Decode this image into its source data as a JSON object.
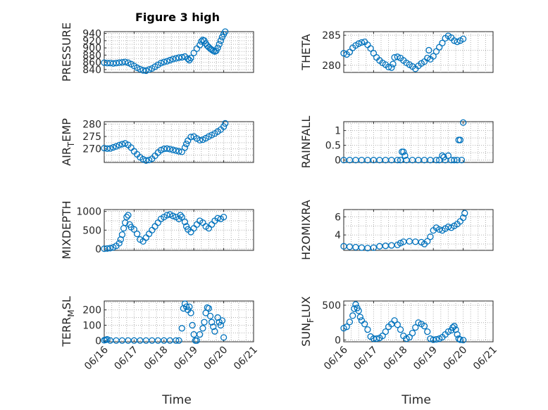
{
  "title": "Figure 3 high",
  "marker_color": "#0072bd",
  "x_axis": {
    "label": "Time",
    "ticks": [
      "06/16",
      "06/17",
      "06/18",
      "06/19",
      "06/20",
      "06/21"
    ]
  },
  "chart_data": [
    {
      "type": "scatter",
      "id": "pressure",
      "ylabel": "PRESSURE",
      "ylim": [
        832,
        945
      ],
      "yticks": [
        840,
        860,
        880,
        900,
        920,
        940
      ],
      "grid": true,
      "points": [
        [
          0,
          859
        ],
        [
          0.1,
          858
        ],
        [
          0.2,
          858
        ],
        [
          0.3,
          857
        ],
        [
          0.4,
          858
        ],
        [
          0.5,
          859
        ],
        [
          0.6,
          860
        ],
        [
          0.7,
          861
        ],
        [
          0.8,
          859
        ],
        [
          0.9,
          855
        ],
        [
          1.0,
          850
        ],
        [
          1.1,
          845
        ],
        [
          1.2,
          841
        ],
        [
          1.3,
          838
        ],
        [
          1.4,
          837
        ],
        [
          1.5,
          840
        ],
        [
          1.6,
          843
        ],
        [
          1.7,
          848
        ],
        [
          1.8,
          853
        ],
        [
          1.9,
          858
        ],
        [
          2.0,
          861
        ],
        [
          2.1,
          863
        ],
        [
          2.2,
          866
        ],
        [
          2.3,
          869
        ],
        [
          2.4,
          871
        ],
        [
          2.5,
          873
        ],
        [
          2.6,
          874
        ],
        [
          2.7,
          876
        ],
        [
          2.8,
          870
        ],
        [
          2.85,
          866
        ],
        [
          2.9,
          872
        ],
        [
          3.0,
          886
        ],
        [
          3.1,
          898
        ],
        [
          3.2,
          908
        ],
        [
          3.25,
          918
        ],
        [
          3.3,
          922
        ],
        [
          3.35,
          920
        ],
        [
          3.4,
          912
        ],
        [
          3.45,
          906
        ],
        [
          3.5,
          902
        ],
        [
          3.55,
          898
        ],
        [
          3.6,
          895
        ],
        [
          3.65,
          892
        ],
        [
          3.7,
          890
        ],
        [
          3.75,
          892
        ],
        [
          3.8,
          900
        ],
        [
          3.85,
          910
        ],
        [
          3.9,
          920
        ],
        [
          3.95,
          930
        ],
        [
          4.0,
          938
        ],
        [
          4.05,
          945
        ]
      ]
    },
    {
      "type": "scatter",
      "id": "theta",
      "ylabel": "THETA",
      "ylim": [
        278.8,
        285.6
      ],
      "yticks": [
        280,
        285
      ],
      "grid": true,
      "points": [
        [
          0,
          282.0
        ],
        [
          0.1,
          281.8
        ],
        [
          0.2,
          282.2
        ],
        [
          0.3,
          282.9
        ],
        [
          0.4,
          283.3
        ],
        [
          0.5,
          283.6
        ],
        [
          0.6,
          283.8
        ],
        [
          0.7,
          283.9
        ],
        [
          0.8,
          283.4
        ],
        [
          0.9,
          282.8
        ],
        [
          1.0,
          282.0
        ],
        [
          1.1,
          281.3
        ],
        [
          1.2,
          280.8
        ],
        [
          1.3,
          280.4
        ],
        [
          1.4,
          280.1
        ],
        [
          1.5,
          279.7
        ],
        [
          1.6,
          279.6
        ],
        [
          1.65,
          280.2
        ],
        [
          1.7,
          281.3
        ],
        [
          1.8,
          281.4
        ],
        [
          1.9,
          281.2
        ],
        [
          2.0,
          280.8
        ],
        [
          2.1,
          280.4
        ],
        [
          2.2,
          280.1
        ],
        [
          2.3,
          279.8
        ],
        [
          2.4,
          279.4
        ],
        [
          2.5,
          279.9
        ],
        [
          2.6,
          280.3
        ],
        [
          2.7,
          280.6
        ],
        [
          2.8,
          281.2
        ],
        [
          2.85,
          282.5
        ],
        [
          2.9,
          281.0
        ],
        [
          3.0,
          281.5
        ],
        [
          3.1,
          282.3
        ],
        [
          3.2,
          283.0
        ],
        [
          3.3,
          283.7
        ],
        [
          3.4,
          284.5
        ],
        [
          3.5,
          284.9
        ],
        [
          3.6,
          284.6
        ],
        [
          3.7,
          284.1
        ],
        [
          3.8,
          283.9
        ],
        [
          3.9,
          284.1
        ],
        [
          4.0,
          284.4
        ]
      ]
    },
    {
      "type": "scatter",
      "id": "air_temp",
      "ylabel": "AIR",
      "ylabel_sub": "T",
      "ylabel_rest": "EMP",
      "ylim": [
        264.5,
        281
      ],
      "yticks": [
        270,
        275,
        280
      ],
      "grid": true,
      "points": [
        [
          0,
          270.3
        ],
        [
          0.1,
          270.1
        ],
        [
          0.2,
          270.2
        ],
        [
          0.3,
          270.6
        ],
        [
          0.4,
          271.0
        ],
        [
          0.5,
          271.5
        ],
        [
          0.6,
          271.9
        ],
        [
          0.7,
          272.2
        ],
        [
          0.8,
          271.6
        ],
        [
          0.9,
          270.5
        ],
        [
          1.0,
          269.0
        ],
        [
          1.1,
          267.8
        ],
        [
          1.2,
          266.6
        ],
        [
          1.3,
          265.8
        ],
        [
          1.4,
          265.3
        ],
        [
          1.5,
          265.5
        ],
        [
          1.6,
          266.0
        ],
        [
          1.7,
          267.2
        ],
        [
          1.8,
          268.5
        ],
        [
          1.9,
          269.5
        ],
        [
          2.0,
          270.0
        ],
        [
          2.1,
          270.1
        ],
        [
          2.2,
          269.9
        ],
        [
          2.3,
          269.6
        ],
        [
          2.4,
          269.3
        ],
        [
          2.5,
          269.0
        ],
        [
          2.6,
          268.8
        ],
        [
          2.7,
          270.5
        ],
        [
          2.75,
          272.0
        ],
        [
          2.8,
          273.3
        ],
        [
          2.9,
          274.8
        ],
        [
          3.0,
          275.0
        ],
        [
          3.1,
          274.2
        ],
        [
          3.2,
          273.5
        ],
        [
          3.3,
          273.7
        ],
        [
          3.4,
          274.3
        ],
        [
          3.5,
          275.0
        ],
        [
          3.6,
          275.6
        ],
        [
          3.7,
          276.2
        ],
        [
          3.8,
          277.0
        ],
        [
          3.9,
          277.8
        ],
        [
          4.0,
          279.0
        ],
        [
          4.05,
          280.3
        ]
      ]
    },
    {
      "type": "scatter",
      "id": "rainfall",
      "ylabel": "RAINFALL",
      "ylim": [
        -0.08,
        1.3
      ],
      "yticks": [
        0,
        0.5,
        1
      ],
      "grid": true,
      "points": [
        [
          0,
          0
        ],
        [
          0.2,
          0
        ],
        [
          0.4,
          0
        ],
        [
          0.6,
          0
        ],
        [
          0.8,
          0
        ],
        [
          1.0,
          0
        ],
        [
          1.2,
          0
        ],
        [
          1.4,
          0
        ],
        [
          1.6,
          0
        ],
        [
          1.8,
          0
        ],
        [
          1.9,
          0
        ],
        [
          1.95,
          0.28
        ],
        [
          2.0,
          0.28
        ],
        [
          2.05,
          0.15
        ],
        [
          2.1,
          0
        ],
        [
          2.3,
          0
        ],
        [
          2.5,
          0
        ],
        [
          2.7,
          0
        ],
        [
          2.9,
          0
        ],
        [
          3.1,
          0
        ],
        [
          3.2,
          0
        ],
        [
          3.3,
          0.15
        ],
        [
          3.35,
          0.1
        ],
        [
          3.4,
          0
        ],
        [
          3.5,
          0.15
        ],
        [
          3.6,
          0
        ],
        [
          3.7,
          0
        ],
        [
          3.8,
          0
        ],
        [
          3.85,
          0.68
        ],
        [
          3.9,
          0.68
        ],
        [
          3.95,
          0
        ],
        [
          4.0,
          1.27
        ]
      ]
    },
    {
      "type": "scatter",
      "id": "mixdepth",
      "ylabel": "MIXDEPTH",
      "ylim": [
        -40,
        1050
      ],
      "yticks": [
        0,
        500,
        1000
      ],
      "grid": true,
      "points": [
        [
          0,
          5
        ],
        [
          0.1,
          10
        ],
        [
          0.2,
          20
        ],
        [
          0.3,
          40
        ],
        [
          0.4,
          80
        ],
        [
          0.5,
          150
        ],
        [
          0.55,
          250
        ],
        [
          0.6,
          380
        ],
        [
          0.65,
          550
        ],
        [
          0.7,
          700
        ],
        [
          0.75,
          850
        ],
        [
          0.8,
          900
        ],
        [
          0.85,
          650
        ],
        [
          0.9,
          580
        ],
        [
          1.0,
          520
        ],
        [
          1.1,
          400
        ],
        [
          1.2,
          250
        ],
        [
          1.3,
          200
        ],
        [
          1.4,
          300
        ],
        [
          1.5,
          400
        ],
        [
          1.6,
          500
        ],
        [
          1.7,
          600
        ],
        [
          1.8,
          700
        ],
        [
          1.9,
          800
        ],
        [
          2.0,
          850
        ],
        [
          2.1,
          900
        ],
        [
          2.2,
          920
        ],
        [
          2.3,
          880
        ],
        [
          2.4,
          850
        ],
        [
          2.5,
          800
        ],
        [
          2.55,
          900
        ],
        [
          2.6,
          850
        ],
        [
          2.7,
          720
        ],
        [
          2.75,
          600
        ],
        [
          2.8,
          520
        ],
        [
          2.9,
          450
        ],
        [
          3.0,
          550
        ],
        [
          3.1,
          650
        ],
        [
          3.2,
          750
        ],
        [
          3.3,
          700
        ],
        [
          3.4,
          600
        ],
        [
          3.5,
          550
        ],
        [
          3.6,
          650
        ],
        [
          3.7,
          750
        ],
        [
          3.8,
          820
        ],
        [
          3.9,
          800
        ],
        [
          4.0,
          850
        ]
      ]
    },
    {
      "type": "scatter",
      "id": "h2omixra",
      "ylabel": "H2OMIXRA",
      "ylim": [
        2.3,
        6.8
      ],
      "yticks": [
        4,
        6
      ],
      "grid": true,
      "points": [
        [
          0,
          2.75
        ],
        [
          0.2,
          2.7
        ],
        [
          0.4,
          2.65
        ],
        [
          0.6,
          2.6
        ],
        [
          0.8,
          2.55
        ],
        [
          1.0,
          2.6
        ],
        [
          1.2,
          2.75
        ],
        [
          1.4,
          2.8
        ],
        [
          1.6,
          2.85
        ],
        [
          1.8,
          2.9
        ],
        [
          1.9,
          3.1
        ],
        [
          2.0,
          3.25
        ],
        [
          2.2,
          3.3
        ],
        [
          2.4,
          3.25
        ],
        [
          2.6,
          3.2
        ],
        [
          2.7,
          3.0
        ],
        [
          2.8,
          3.3
        ],
        [
          2.9,
          3.8
        ],
        [
          3.0,
          4.5
        ],
        [
          3.1,
          4.8
        ],
        [
          3.2,
          4.6
        ],
        [
          3.3,
          4.5
        ],
        [
          3.4,
          4.7
        ],
        [
          3.5,
          4.9
        ],
        [
          3.6,
          4.8
        ],
        [
          3.7,
          5.0
        ],
        [
          3.8,
          5.2
        ],
        [
          3.9,
          5.5
        ],
        [
          4.0,
          5.9
        ],
        [
          4.05,
          6.4
        ]
      ]
    },
    {
      "type": "scatter",
      "id": "terr_msl",
      "ylabel": "TERR",
      "ylabel_sub": "M",
      "ylabel_rest": "SL",
      "ylim": [
        -8,
        258
      ],
      "yticks": [
        0,
        100,
        200
      ],
      "grid": true,
      "points": [
        [
          0,
          2
        ],
        [
          0.05,
          5
        ],
        [
          0.1,
          8
        ],
        [
          0.2,
          0
        ],
        [
          0.4,
          0
        ],
        [
          0.6,
          0
        ],
        [
          0.8,
          0
        ],
        [
          1.0,
          0
        ],
        [
          1.2,
          0
        ],
        [
          1.4,
          0
        ],
        [
          1.6,
          0
        ],
        [
          1.8,
          0
        ],
        [
          2.0,
          0
        ],
        [
          2.2,
          0
        ],
        [
          2.4,
          0
        ],
        [
          2.5,
          0
        ],
        [
          2.6,
          80
        ],
        [
          2.65,
          210
        ],
        [
          2.7,
          240
        ],
        [
          2.75,
          220
        ],
        [
          2.8,
          200
        ],
        [
          2.85,
          220
        ],
        [
          2.9,
          180
        ],
        [
          2.95,
          100
        ],
        [
          3.0,
          40
        ],
        [
          3.05,
          0
        ],
        [
          3.1,
          0
        ],
        [
          3.2,
          40
        ],
        [
          3.3,
          80
        ],
        [
          3.35,
          120
        ],
        [
          3.4,
          180
        ],
        [
          3.45,
          215
        ],
        [
          3.5,
          210
        ],
        [
          3.55,
          160
        ],
        [
          3.6,
          120
        ],
        [
          3.65,
          90
        ],
        [
          3.7,
          60
        ],
        [
          3.8,
          150
        ],
        [
          3.85,
          120
        ],
        [
          3.9,
          100
        ],
        [
          3.95,
          130
        ],
        [
          4.0,
          20
        ]
      ]
    },
    {
      "type": "scatter",
      "id": "sun_flux",
      "ylabel": "SUN",
      "ylabel_sub": "F",
      "ylabel_rest": "LUX",
      "ylim": [
        -25,
        560
      ],
      "yticks": [
        0,
        500
      ],
      "grid": true,
      "points": [
        [
          0,
          170
        ],
        [
          0.1,
          190
        ],
        [
          0.2,
          260
        ],
        [
          0.3,
          350
        ],
        [
          0.35,
          450
        ],
        [
          0.4,
          510
        ],
        [
          0.45,
          460
        ],
        [
          0.5,
          420
        ],
        [
          0.55,
          330
        ],
        [
          0.6,
          280
        ],
        [
          0.7,
          230
        ],
        [
          0.8,
          150
        ],
        [
          0.9,
          50
        ],
        [
          1.0,
          20
        ],
        [
          1.1,
          20
        ],
        [
          1.2,
          30
        ],
        [
          1.3,
          60
        ],
        [
          1.4,
          120
        ],
        [
          1.5,
          190
        ],
        [
          1.6,
          230
        ],
        [
          1.7,
          280
        ],
        [
          1.8,
          220
        ],
        [
          1.9,
          150
        ],
        [
          2.0,
          60
        ],
        [
          2.1,
          20
        ],
        [
          2.2,
          40
        ],
        [
          2.3,
          100
        ],
        [
          2.4,
          180
        ],
        [
          2.5,
          250
        ],
        [
          2.6,
          230
        ],
        [
          2.7,
          200
        ],
        [
          2.8,
          120
        ],
        [
          2.9,
          20
        ],
        [
          3.0,
          5
        ],
        [
          3.1,
          10
        ],
        [
          3.2,
          20
        ],
        [
          3.3,
          40
        ],
        [
          3.4,
          80
        ],
        [
          3.5,
          120
        ],
        [
          3.6,
          140
        ],
        [
          3.65,
          180
        ],
        [
          3.7,
          200
        ],
        [
          3.75,
          150
        ],
        [
          3.8,
          80
        ],
        [
          3.85,
          20
        ],
        [
          3.9,
          5
        ],
        [
          4.0,
          0
        ]
      ]
    }
  ]
}
